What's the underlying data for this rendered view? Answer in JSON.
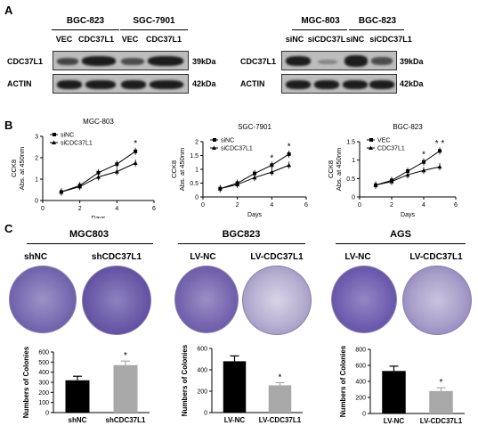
{
  "panels": {
    "a": "A",
    "b": "B",
    "c": "C"
  },
  "blot_left": {
    "groups": [
      "BGC-823",
      "SGC-7901"
    ],
    "lanes": [
      "VEC",
      "CDC37L1",
      "VEC",
      "CDC37L1"
    ],
    "rows": [
      "CDC37L1",
      "ACTIN"
    ],
    "kda": [
      "39kDa",
      "42kDa"
    ]
  },
  "blot_right": {
    "groups": [
      "MGC-803",
      "BGC-823"
    ],
    "lanes": [
      "siNC",
      "siCDC37L",
      "siNC",
      "siCDC37L1"
    ],
    "rows": [
      "CDC37L1",
      "ACTIN"
    ],
    "kda": [
      "39kDa",
      "42kDa"
    ]
  },
  "colony_titles": [
    "MGC803",
    "BGC823",
    "AGS"
  ],
  "colony_labels": [
    "shNC",
    "shCDC37L1",
    "LV-NC",
    "LV-CDC37L1",
    "LV-NC",
    "LV-CDC37L1"
  ],
  "chart_data": [
    {
      "type": "line",
      "title": "MGC-803",
      "xlabel": "Days",
      "ylabel_lines": [
        "CCK8",
        "Abs. at 450nm"
      ],
      "xlim": [
        0,
        6
      ],
      "xticks": [
        0,
        2,
        4,
        6
      ],
      "ylim": [
        0,
        3
      ],
      "yticks": [
        0,
        1,
        2,
        3
      ],
      "series": [
        {
          "name": "siNC",
          "x": [
            1,
            2,
            3,
            4,
            5
          ],
          "y": [
            0.4,
            0.7,
            1.3,
            1.7,
            2.3
          ]
        },
        {
          "name": "siCDC37L1",
          "x": [
            1,
            2,
            3,
            4,
            5
          ],
          "y": [
            0.4,
            0.65,
            1.1,
            1.35,
            1.75
          ]
        }
      ],
      "annotations": [
        {
          "text": "*",
          "x": 5,
          "y": 2.55
        }
      ]
    },
    {
      "type": "line",
      "title": "SGC-7901",
      "xlabel": "Days",
      "ylabel_lines": [
        "CCK8",
        "Abs. at 450nm"
      ],
      "xlim": [
        0,
        6
      ],
      "xticks": [
        0,
        2,
        4,
        6
      ],
      "ylim": [
        0,
        2
      ],
      "yticks": [
        0,
        0.5,
        1,
        1.5,
        2
      ],
      "series": [
        {
          "name": "siNC",
          "x": [
            1,
            2,
            3,
            4,
            5
          ],
          "y": [
            0.3,
            0.5,
            0.85,
            1.15,
            1.55
          ]
        },
        {
          "name": "siCDC37L1",
          "x": [
            1,
            2,
            3,
            4,
            5
          ],
          "y": [
            0.3,
            0.45,
            0.7,
            0.9,
            1.15
          ]
        }
      ],
      "annotations": [
        {
          "text": "*",
          "x": 4,
          "y": 1.3
        },
        {
          "text": "*",
          "x": 5,
          "y": 1.72
        }
      ]
    },
    {
      "type": "line",
      "title": "BGC-823",
      "xlabel": "Days",
      "ylabel_lines": [
        "CCK8",
        "Abs. at 450nm"
      ],
      "xlim": [
        0,
        6
      ],
      "xticks": [
        0,
        2,
        4,
        6
      ],
      "ylim": [
        0,
        1.5
      ],
      "yticks": [
        0,
        0.5,
        1,
        1.5
      ],
      "series": [
        {
          "name": "VEC",
          "x": [
            1,
            2,
            3,
            4,
            5
          ],
          "y": [
            0.32,
            0.45,
            0.7,
            0.95,
            1.25
          ]
        },
        {
          "name": "CDC37L1",
          "x": [
            1,
            2,
            3,
            4,
            5
          ],
          "y": [
            0.32,
            0.42,
            0.6,
            0.72,
            0.82
          ]
        }
      ],
      "annotations": [
        {
          "text": "*",
          "x": 4,
          "y": 1.08
        },
        {
          "text": "* *",
          "x": 5,
          "y": 1.38
        }
      ]
    },
    {
      "type": "bar",
      "ylabel": "Numbers of Colonies",
      "ylim": [
        0,
        600
      ],
      "yticks": [
        0,
        100,
        200,
        300,
        400,
        500,
        600
      ],
      "categories": [
        "shNC",
        "shCDC37L1"
      ],
      "values": [
        320,
        470
      ],
      "errors": [
        40,
        40
      ],
      "colors": [
        "#000000",
        "#a8a8a8"
      ],
      "annotations": [
        {
          "text": "*",
          "category": "shCDC37L1"
        }
      ]
    },
    {
      "type": "bar",
      "ylabel": "Numbers of Colonies",
      "ylim": [
        0,
        600
      ],
      "yticks": [
        0,
        200,
        400,
        600
      ],
      "categories": [
        "LV-NC",
        "LV-CDC37L1"
      ],
      "values": [
        480,
        255
      ],
      "errors": [
        50,
        25
      ],
      "colors": [
        "#000000",
        "#a8a8a8"
      ],
      "annotations": [
        {
          "text": "*",
          "category": "LV-CDC37L1"
        }
      ]
    },
    {
      "type": "bar",
      "ylabel": "Numbers of Colonies",
      "ylim": [
        0,
        800
      ],
      "yticks": [
        0,
        200,
        400,
        600,
        800
      ],
      "categories": [
        "LV-NC",
        "LV-CDC37L1"
      ],
      "values": [
        530,
        280
      ],
      "errors": [
        60,
        40
      ],
      "colors": [
        "#000000",
        "#a8a8a8"
      ],
      "annotations": [
        {
          "text": "*",
          "category": "LV-CDC37L1"
        }
      ]
    }
  ]
}
